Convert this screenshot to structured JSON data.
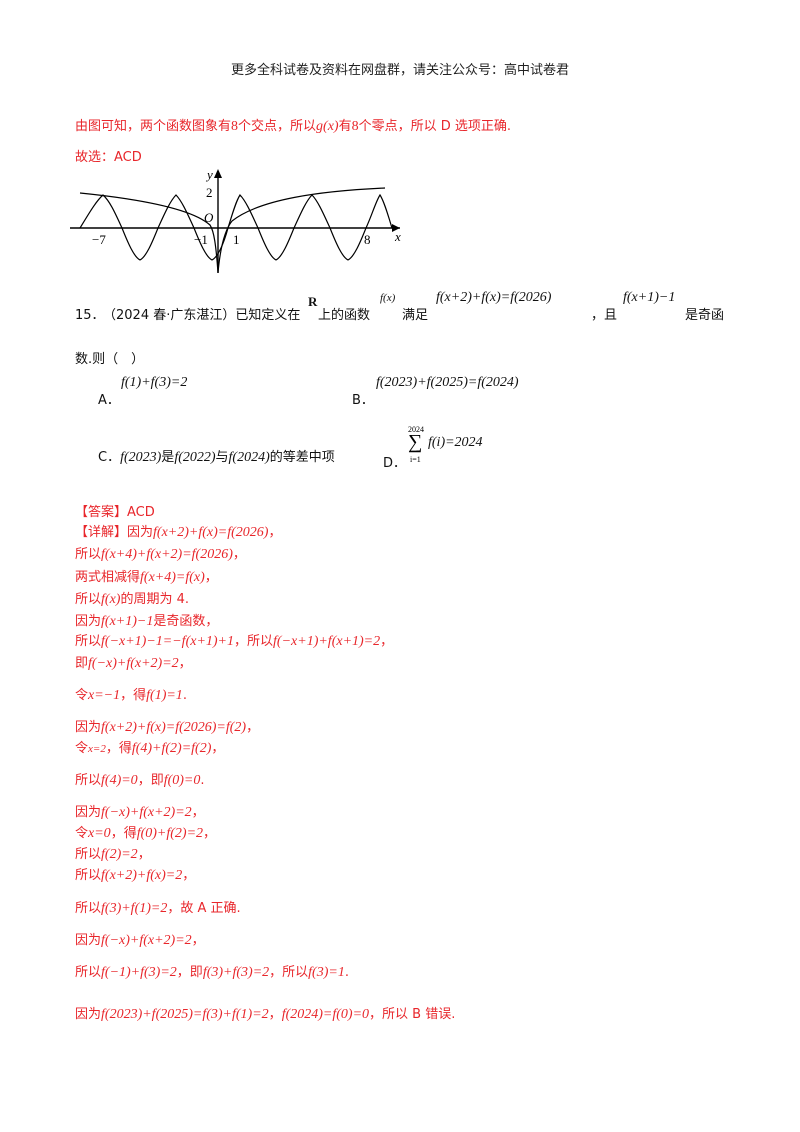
{
  "header": "更多全科试卷及资料在网盘群，请关注公众号：高中试卷君",
  "prev": {
    "conclusion_a": "由图可知，两个函数图象有",
    "n1": "8",
    "conclusion_b": "个交点，所以",
    "gx": "g(x)",
    "conclusion_c": "有",
    "n2": "8",
    "conclusion_d": "个零点，所以 D 选项正确.",
    "choice": "故选：ACD"
  },
  "graph": {
    "y_label": "y",
    "x_label": "x",
    "origin": "O",
    "tick_2": "2",
    "tick_m7": "−7",
    "tick_m1": "−1",
    "tick_1": "1",
    "tick_8": "8"
  },
  "question": {
    "number": "15．",
    "source": "（2024 春·广东湛江）已知定义在",
    "R": "R",
    "t1": "上的函数",
    "fx": "f(x)",
    "t2": "满足",
    "cond": "f(x+2)+f(x)=f(2026)",
    "t3": "，且",
    "odd": "f(x+1)−1",
    "t4": "是奇函",
    "t5": "数.则（　）",
    "A_label": "A．",
    "A": "f(1)+f(3)=2",
    "B_label": "B．",
    "B": "f(2023)+f(2025)=f(2024)",
    "C_label": "C．",
    "C1": "f(2023)",
    "C2": "是",
    "C3": "f(2022)",
    "C4": "与",
    "C5": "f(2024)",
    "C6": "的等差中项",
    "D_label": "D．",
    "D_sum_top": "2024",
    "D_sum_bot": "i=1",
    "D": "f(i)=2024"
  },
  "answer": {
    "label": "【答案】ACD",
    "detail_label": "【详解】因为",
    "l1": "f(x+2)+f(x)=f(2026)",
    "l1_end": "，",
    "l2_pre": "所以",
    "l2": "f(x+4)+f(x+2)=f(2026)",
    "l2_end": "，",
    "l3_pre": "两式相减得",
    "l3": "f(x+4)=f(x)",
    "l3_end": "，",
    "l4_pre": "所以",
    "l4": "f(x)",
    "l4_end": "的周期为 4.",
    "l5_pre": "因为",
    "l5": "f(x+1)−1",
    "l5_end": "是奇函数，",
    "l6_pre": "所以",
    "l6": "f(−x+1)−1=−f(x+1)+1",
    "l6_mid": "，所以",
    "l6b": "f(−x+1)+f(x+1)=2",
    "l6_end": "，",
    "l7_pre": "即",
    "l7": "f(−x)+f(x+2)=2",
    "l7_end": "，",
    "l8_pre": "令",
    "l8a": "x=−1",
    "l8_mid": "，得",
    "l8b": "f(1)=1",
    "l8_end": ".",
    "l9_pre": "因为",
    "l9": "f(x+2)+f(x)=f(2026)=f(2)",
    "l9_end": "，",
    "l10_pre": "令",
    "l10a": "x=2",
    "l10_mid": "，得",
    "l10b": "f(4)+f(2)=f(2)",
    "l10_end": "，",
    "l11_pre": "所以",
    "l11a": "f(4)=0",
    "l11_mid": "，即",
    "l11b": "f(0)=0",
    "l11_end": ".",
    "l12_pre": "因为",
    "l12": "f(−x)+f(x+2)=2",
    "l12_end": "，",
    "l13_pre": "令",
    "l13a": "x=0",
    "l13_mid": "，得",
    "l13b": "f(0)+f(2)=2",
    "l13_end": "，",
    "l14_pre": "所以",
    "l14": "f(2)=2",
    "l14_end": "，",
    "l15_pre": "所以",
    "l15": "f(x+2)+f(x)=2",
    "l15_end": "，",
    "l16_pre": "所以",
    "l16": "f(3)+f(1)=2",
    "l16_end": "，故 A 正确.",
    "l17_pre": "因为",
    "l17": "f(−x)+f(x+2)=2",
    "l17_end": "，",
    "l18_pre": "所以",
    "l18a": "f(−1)+f(3)=2",
    "l18_mid": "，即",
    "l18b": "f(3)+f(3)=2",
    "l18_mid2": "，所以",
    "l18c": "f(3)=1",
    "l18_end": ".",
    "l19_pre": "因为",
    "l19a": "f(2023)+f(2025)=f(3)+f(1)=2",
    "l19_mid": "，",
    "l19b": "f(2024)=f(0)=0",
    "l19_end": "，所以 B 错误."
  }
}
